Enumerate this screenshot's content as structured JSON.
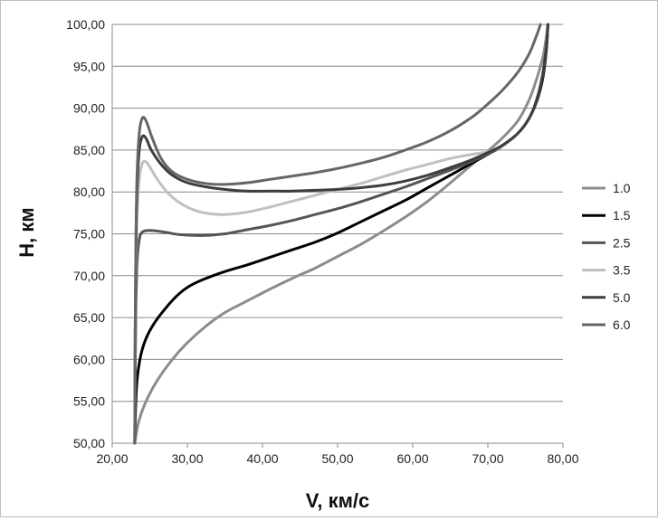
{
  "chart_data": {
    "type": "line",
    "title": "",
    "xlabel": "V, км/с",
    "ylabel": "H, км",
    "xlim": [
      20,
      80
    ],
    "ylim": [
      50,
      100
    ],
    "x_ticks": [
      "20,00",
      "30,00",
      "40,00",
      "50,00",
      "60,00",
      "70,00",
      "80,00"
    ],
    "y_ticks": [
      "50,00",
      "55,00",
      "60,00",
      "65,00",
      "70,00",
      "75,00",
      "80,00",
      "85,00",
      "90,00",
      "95,00",
      "100,00"
    ],
    "grid": {
      "horizontal": true,
      "vertical": false
    },
    "legend_position": "right",
    "series": [
      {
        "name": "1.0",
        "color": "#8c8c8c",
        "points": [
          [
            23.0,
            50.0
          ],
          [
            23.5,
            52.5
          ],
          [
            24.5,
            55.0
          ],
          [
            26.0,
            57.5
          ],
          [
            28.0,
            60.0
          ],
          [
            30.0,
            62.0
          ],
          [
            32.5,
            64.0
          ],
          [
            35.0,
            65.6
          ],
          [
            38.0,
            67.0
          ],
          [
            41.0,
            68.4
          ],
          [
            44.0,
            69.7
          ],
          [
            47.0,
            70.9
          ],
          [
            50.0,
            72.3
          ],
          [
            53.0,
            73.7
          ],
          [
            56.0,
            75.3
          ],
          [
            59.0,
            77.0
          ],
          [
            62.0,
            78.9
          ],
          [
            64.5,
            80.7
          ],
          [
            67.0,
            82.6
          ],
          [
            69.5,
            84.5
          ],
          [
            72.0,
            86.5
          ],
          [
            74.0,
            88.5
          ],
          [
            75.5,
            91.0
          ],
          [
            76.5,
            93.5
          ],
          [
            77.3,
            96.0
          ],
          [
            77.7,
            98.0
          ],
          [
            78.0,
            100.0
          ]
        ]
      },
      {
        "name": "1.5",
        "color": "#000000",
        "points": [
          [
            23.0,
            50.0
          ],
          [
            23.1,
            54.0
          ],
          [
            23.3,
            57.5
          ],
          [
            23.8,
            60.5
          ],
          [
            24.5,
            62.5
          ],
          [
            25.5,
            64.2
          ],
          [
            27.0,
            66.0
          ],
          [
            28.5,
            67.5
          ],
          [
            30.0,
            68.6
          ],
          [
            32.0,
            69.5
          ],
          [
            35.0,
            70.5
          ],
          [
            38.0,
            71.3
          ],
          [
            41.0,
            72.2
          ],
          [
            44.0,
            73.1
          ],
          [
            47.0,
            74.0
          ],
          [
            50.0,
            75.1
          ],
          [
            53.0,
            76.4
          ],
          [
            56.0,
            77.7
          ],
          [
            59.0,
            79.0
          ],
          [
            62.0,
            80.5
          ],
          [
            65.0,
            82.0
          ],
          [
            68.0,
            83.5
          ],
          [
            70.0,
            84.5
          ],
          [
            72.0,
            85.6
          ],
          [
            74.0,
            87.0
          ],
          [
            75.5,
            88.8
          ],
          [
            76.5,
            90.8
          ],
          [
            77.3,
            93.5
          ],
          [
            77.8,
            97.0
          ],
          [
            78.0,
            100.0
          ]
        ]
      },
      {
        "name": "2.5",
        "color": "#555555",
        "points": [
          [
            23.0,
            50.0
          ],
          [
            23.05,
            58.0
          ],
          [
            23.15,
            66.0
          ],
          [
            23.3,
            71.5
          ],
          [
            23.6,
            74.3
          ],
          [
            24.0,
            75.2
          ],
          [
            25.0,
            75.4
          ],
          [
            27.0,
            75.2
          ],
          [
            29.0,
            74.9
          ],
          [
            32.0,
            74.8
          ],
          [
            35.0,
            75.0
          ],
          [
            38.0,
            75.5
          ],
          [
            41.0,
            76.0
          ],
          [
            44.0,
            76.6
          ],
          [
            47.0,
            77.3
          ],
          [
            50.0,
            78.0
          ],
          [
            53.0,
            78.8
          ],
          [
            56.0,
            79.7
          ],
          [
            59.0,
            80.6
          ],
          [
            62.0,
            81.6
          ],
          [
            65.0,
            82.6
          ],
          [
            68.0,
            83.7
          ],
          [
            70.0,
            84.5
          ],
          [
            72.0,
            85.5
          ],
          [
            74.0,
            87.0
          ],
          [
            75.5,
            88.8
          ],
          [
            76.5,
            91.0
          ],
          [
            77.3,
            94.0
          ],
          [
            77.8,
            97.5
          ],
          [
            78.0,
            100.0
          ]
        ]
      },
      {
        "name": "3.5",
        "color": "#c0c0c0",
        "points": [
          [
            23.0,
            50.0
          ],
          [
            23.05,
            60.0
          ],
          [
            23.15,
            70.0
          ],
          [
            23.3,
            77.0
          ],
          [
            23.6,
            81.5
          ],
          [
            24.0,
            83.4
          ],
          [
            24.5,
            83.6
          ],
          [
            25.0,
            83.0
          ],
          [
            26.0,
            81.5
          ],
          [
            27.5,
            79.8
          ],
          [
            29.0,
            78.7
          ],
          [
            31.0,
            77.8
          ],
          [
            33.0,
            77.4
          ],
          [
            35.0,
            77.3
          ],
          [
            38.0,
            77.6
          ],
          [
            41.0,
            78.2
          ],
          [
            44.0,
            78.9
          ],
          [
            47.0,
            79.6
          ],
          [
            50.0,
            80.3
          ],
          [
            53.0,
            81.0
          ],
          [
            56.0,
            81.8
          ],
          [
            59.0,
            82.6
          ],
          [
            62.0,
            83.3
          ],
          [
            65.0,
            84.0
          ],
          [
            68.0,
            84.5
          ],
          [
            70.0,
            84.8
          ],
          [
            72.0,
            85.5
          ],
          [
            74.0,
            87.0
          ],
          [
            75.5,
            88.8
          ],
          [
            76.5,
            91.0
          ],
          [
            77.3,
            94.0
          ],
          [
            77.8,
            97.5
          ],
          [
            78.0,
            100.0
          ]
        ]
      },
      {
        "name": "5.0",
        "color": "#3d3d3d",
        "points": [
          [
            23.0,
            50.0
          ],
          [
            23.05,
            62.0
          ],
          [
            23.15,
            73.0
          ],
          [
            23.3,
            80.0
          ],
          [
            23.6,
            85.0
          ],
          [
            24.0,
            86.6
          ],
          [
            24.5,
            86.4
          ],
          [
            25.2,
            85.0
          ],
          [
            26.5,
            83.3
          ],
          [
            28.0,
            82.0
          ],
          [
            30.0,
            81.1
          ],
          [
            32.5,
            80.6
          ],
          [
            35.0,
            80.3
          ],
          [
            38.0,
            80.1
          ],
          [
            41.0,
            80.1
          ],
          [
            44.0,
            80.1
          ],
          [
            47.0,
            80.2
          ],
          [
            50.0,
            80.3
          ],
          [
            53.0,
            80.5
          ],
          [
            56.0,
            80.8
          ],
          [
            59.0,
            81.3
          ],
          [
            62.0,
            82.0
          ],
          [
            65.0,
            82.9
          ],
          [
            68.0,
            83.9
          ],
          [
            70.0,
            84.7
          ],
          [
            72.0,
            85.6
          ],
          [
            74.0,
            87.0
          ],
          [
            75.5,
            88.8
          ],
          [
            76.5,
            91.0
          ],
          [
            77.3,
            94.0
          ],
          [
            77.8,
            97.5
          ],
          [
            78.0,
            100.0
          ]
        ]
      },
      {
        "name": "6.0",
        "color": "#666666",
        "points": [
          [
            23.0,
            50.0
          ],
          [
            23.05,
            63.0
          ],
          [
            23.15,
            74.0
          ],
          [
            23.3,
            82.0
          ],
          [
            23.6,
            87.0
          ],
          [
            24.0,
            88.8
          ],
          [
            24.5,
            88.5
          ],
          [
            25.3,
            86.5
          ],
          [
            26.5,
            84.0
          ],
          [
            28.0,
            82.4
          ],
          [
            30.0,
            81.5
          ],
          [
            32.5,
            81.0
          ],
          [
            35.0,
            80.9
          ],
          [
            38.0,
            81.1
          ],
          [
            41.0,
            81.5
          ],
          [
            44.0,
            81.9
          ],
          [
            47.0,
            82.3
          ],
          [
            50.0,
            82.8
          ],
          [
            53.0,
            83.4
          ],
          [
            56.0,
            84.1
          ],
          [
            59.0,
            85.0
          ],
          [
            62.0,
            86.0
          ],
          [
            65.0,
            87.3
          ],
          [
            68.0,
            89.0
          ],
          [
            70.0,
            90.5
          ],
          [
            72.0,
            92.2
          ],
          [
            74.0,
            94.3
          ],
          [
            75.5,
            96.5
          ],
          [
            76.5,
            98.7
          ],
          [
            77.0,
            100.0
          ]
        ]
      }
    ]
  }
}
